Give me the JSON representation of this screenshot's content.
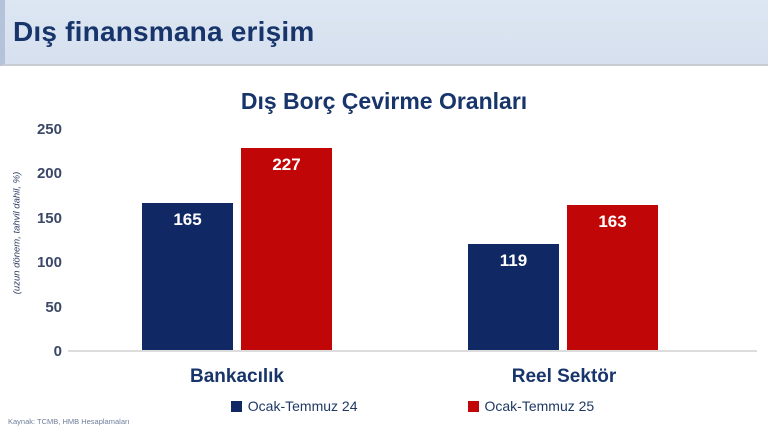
{
  "header": {
    "title": "Dış finansmana erişim"
  },
  "chart_data": {
    "type": "bar",
    "title": "Dış Borç Çevirme Oranları",
    "ylabel": "(uzun dönem, tahvil dahil, %)",
    "categories": [
      "Bankacılık",
      "Reel Sektör"
    ],
    "series": [
      {
        "name": "Ocak-Temmuz 24",
        "color": "#102863",
        "values": [
          165,
          119
        ]
      },
      {
        "name": "Ocak-Temmuz 25",
        "color": "#c00606",
        "values": [
          227,
          163
        ]
      }
    ],
    "yticks": [
      0,
      50,
      100,
      150,
      200,
      250
    ],
    "ylim": [
      0,
      250
    ],
    "grid": false,
    "legend_position": "bottom",
    "value_labels": "inside-top"
  },
  "footer": {
    "source": "Kaynak: TCMB, HMB Hesaplamaları"
  },
  "colors": {
    "header_bg": "#d9e3f0",
    "title_text": "#17356b",
    "navy": "#102863",
    "red": "#c00606",
    "baseline": "#dcdcdc"
  }
}
